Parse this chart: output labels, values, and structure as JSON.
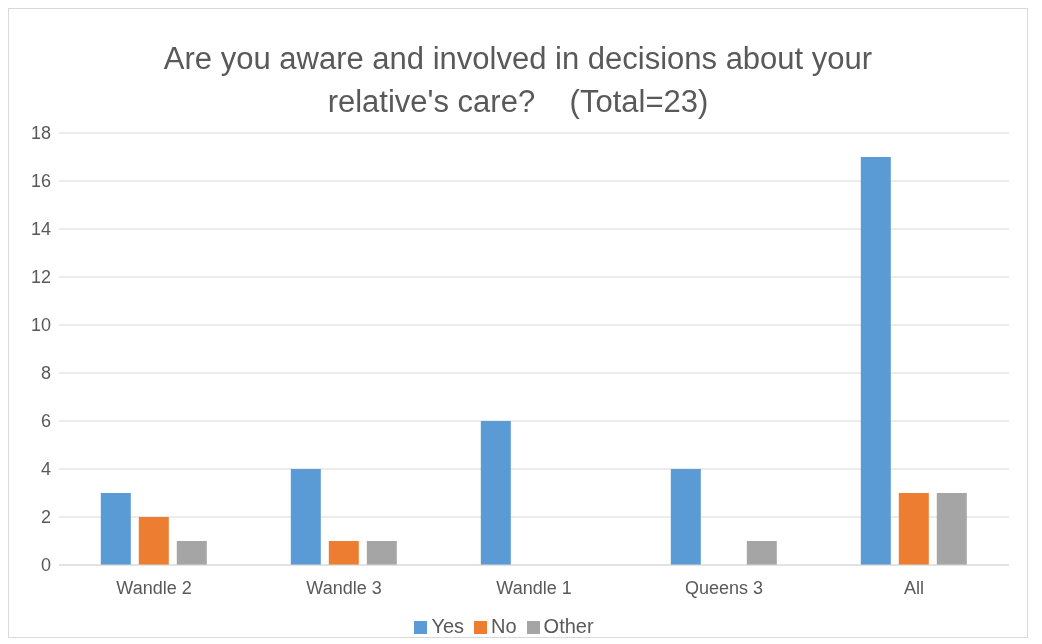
{
  "chart_data": {
    "type": "bar",
    "title": "Are you aware and involved in decisions about your relative's care?    (Total=23)",
    "categories": [
      "Wandle 2",
      "Wandle 3",
      "Wandle 1",
      "Queens 3",
      "All"
    ],
    "series": [
      {
        "name": "Yes",
        "color": "#5b9bd5",
        "values": [
          3,
          4,
          6,
          4,
          17
        ]
      },
      {
        "name": "No",
        "color": "#ed7d31",
        "values": [
          2,
          1,
          0,
          0,
          3
        ]
      },
      {
        "name": "Other",
        "color": "#a5a5a5",
        "values": [
          1,
          1,
          0,
          1,
          3
        ]
      }
    ],
    "ylim": [
      0,
      18
    ],
    "yticks": [
      0,
      2,
      4,
      6,
      8,
      10,
      12,
      14,
      16,
      18
    ],
    "grid": "y",
    "legend": "bottom"
  }
}
